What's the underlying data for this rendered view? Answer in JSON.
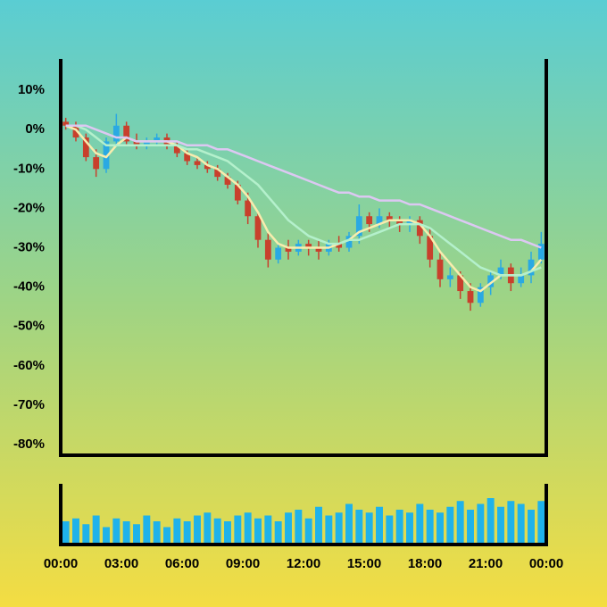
{
  "chart_data": {
    "type": "candlestick",
    "x": [
      0.25,
      0.75,
      1.25,
      1.75,
      2.25,
      2.75,
      3.25,
      3.75,
      4.25,
      4.75,
      5.25,
      5.75,
      6.25,
      6.75,
      7.25,
      7.75,
      8.25,
      8.75,
      9.25,
      9.75,
      10.25,
      10.75,
      11.25,
      11.75,
      12.25,
      12.75,
      13.25,
      13.75,
      14.25,
      14.75,
      15.25,
      15.75,
      16.25,
      16.75,
      17.25,
      17.75,
      18.25,
      18.75,
      19.25,
      19.75,
      20.25,
      20.75,
      21.25,
      21.75,
      22.25,
      22.75,
      23.25,
      23.75
    ],
    "open": [
      2,
      1,
      -2,
      -7,
      -10,
      -3,
      1,
      -3,
      -4,
      -3,
      -2,
      -4,
      -6,
      -8,
      -9,
      -10,
      -12,
      -14,
      -18,
      -22,
      -28,
      -33,
      -30,
      -31,
      -29,
      -30,
      -31,
      -29,
      -30,
      -27,
      -22,
      -24,
      -22,
      -23,
      -24,
      -23,
      -27,
      -33,
      -38,
      -37,
      -41,
      -44,
      -40,
      -37,
      -35,
      -39,
      -37,
      -33
    ],
    "high": [
      3,
      2,
      -1,
      -5,
      -2,
      4,
      2,
      -1,
      -2,
      -1,
      -1,
      -3,
      -5,
      -7,
      -8,
      -9,
      -11,
      -13,
      -16,
      -21,
      -26,
      -29,
      -28,
      -28,
      -28,
      -28,
      -28,
      -27,
      -26,
      -19,
      -21,
      -20,
      -21,
      -22,
      -22,
      -22,
      -25,
      -31,
      -35,
      -36,
      -39,
      -39,
      -36,
      -33,
      -34,
      -35,
      -31,
      -26
    ],
    "low": [
      0,
      -3,
      -8,
      -12,
      -11,
      -4,
      -4,
      -5,
      -5,
      -4,
      -5,
      -7,
      -9,
      -10,
      -11,
      -13,
      -15,
      -19,
      -24,
      -30,
      -35,
      -34,
      -33,
      -32,
      -32,
      -33,
      -32,
      -31,
      -31,
      -29,
      -26,
      -25,
      -25,
      -26,
      -26,
      -29,
      -35,
      -40,
      -40,
      -43,
      -46,
      -45,
      -42,
      -38,
      -41,
      -40,
      -39,
      -34
    ],
    "close": [
      1,
      -2,
      -7,
      -10,
      -3,
      1,
      -3,
      -4,
      -3,
      -2,
      -4,
      -6,
      -8,
      -9,
      -10,
      -12,
      -14,
      -18,
      -22,
      -28,
      -33,
      -30,
      -31,
      -29,
      -30,
      -31,
      -29,
      -30,
      -27,
      -22,
      -24,
      -22,
      -23,
      -24,
      -23,
      -27,
      -33,
      -38,
      -37,
      -41,
      -44,
      -40,
      -37,
      -35,
      -39,
      -37,
      -33,
      -29
    ],
    "up_color": "#2aa9e3",
    "down_color": "#c8402c",
    "moving_averages": [
      {
        "color": "#f8ecae",
        "values": [
          1,
          0,
          -3,
          -6,
          -7,
          -4,
          -2,
          -3,
          -3,
          -3,
          -3,
          -4,
          -6,
          -7,
          -9,
          -10,
          -12,
          -14,
          -17,
          -21,
          -26,
          -29,
          -30,
          -30,
          -30,
          -30,
          -30,
          -29,
          -28,
          -26,
          -25,
          -24,
          -23,
          -23,
          -23,
          -24,
          -27,
          -31,
          -34,
          -37,
          -40,
          -41,
          -39,
          -37,
          -37,
          -37,
          -36,
          -33
        ]
      },
      {
        "color": "#b4f0cc",
        "values": [
          1,
          1,
          0,
          -2,
          -4,
          -4,
          -4,
          -4,
          -4,
          -4,
          -4,
          -4,
          -5,
          -5,
          -6,
          -7,
          -8,
          -10,
          -12,
          -14,
          -17,
          -20,
          -23,
          -25,
          -27,
          -28,
          -29,
          -29,
          -28,
          -28,
          -27,
          -26,
          -25,
          -24,
          -24,
          -24,
          -25,
          -27,
          -29,
          -31,
          -33,
          -35,
          -36,
          -37,
          -37,
          -37,
          -36,
          -35
        ]
      },
      {
        "color": "#dcc8f2",
        "values": [
          1,
          1,
          1,
          0,
          -1,
          -2,
          -2,
          -3,
          -3,
          -3,
          -3,
          -3,
          -4,
          -4,
          -4,
          -5,
          -5,
          -6,
          -7,
          -8,
          -9,
          -10,
          -11,
          -12,
          -13,
          -14,
          -15,
          -16,
          -16,
          -17,
          -17,
          -18,
          -18,
          -18,
          -19,
          -19,
          -20,
          -21,
          -22,
          -23,
          -24,
          -25,
          -26,
          -27,
          -28,
          -28,
          -29,
          -30
        ]
      }
    ],
    "volume": [
      40,
      45,
      35,
      50,
      30,
      45,
      40,
      35,
      50,
      40,
      30,
      45,
      40,
      50,
      55,
      45,
      40,
      50,
      55,
      45,
      50,
      40,
      55,
      60,
      45,
      65,
      50,
      55,
      70,
      60,
      55,
      65,
      50,
      60,
      55,
      70,
      60,
      55,
      65,
      75,
      60,
      70,
      80,
      65,
      75,
      70,
      60,
      75
    ],
    "volume_color": "#1fb2ea",
    "volume_ylim": [
      0,
      100
    ],
    "xlim": [
      0,
      24
    ],
    "xticks": [
      {
        "value": 0,
        "label": "00:00"
      },
      {
        "value": 3,
        "label": "03:00"
      },
      {
        "value": 6,
        "label": "06:00"
      },
      {
        "value": 9,
        "label": "09:00"
      },
      {
        "value": 12,
        "label": "12:00"
      },
      {
        "value": 15,
        "label": "15:00"
      },
      {
        "value": 18,
        "label": "18:00"
      },
      {
        "value": 21,
        "label": "21:00"
      },
      {
        "value": 24,
        "label": "00:00"
      }
    ],
    "ylim": [
      -82.7,
      17.5
    ],
    "yticks": [
      {
        "value": 10,
        "label": "10%"
      },
      {
        "value": 0,
        "label": "0%"
      },
      {
        "value": -10,
        "label": "-10%"
      },
      {
        "value": -20,
        "label": "-20%"
      },
      {
        "value": -30,
        "label": "-30%"
      },
      {
        "value": -40,
        "label": "-40%"
      },
      {
        "value": -50,
        "label": "-50%"
      },
      {
        "value": -60,
        "label": "-60%"
      },
      {
        "value": -70,
        "label": "-70%"
      },
      {
        "value": -80,
        "label": "-80%"
      }
    ]
  }
}
